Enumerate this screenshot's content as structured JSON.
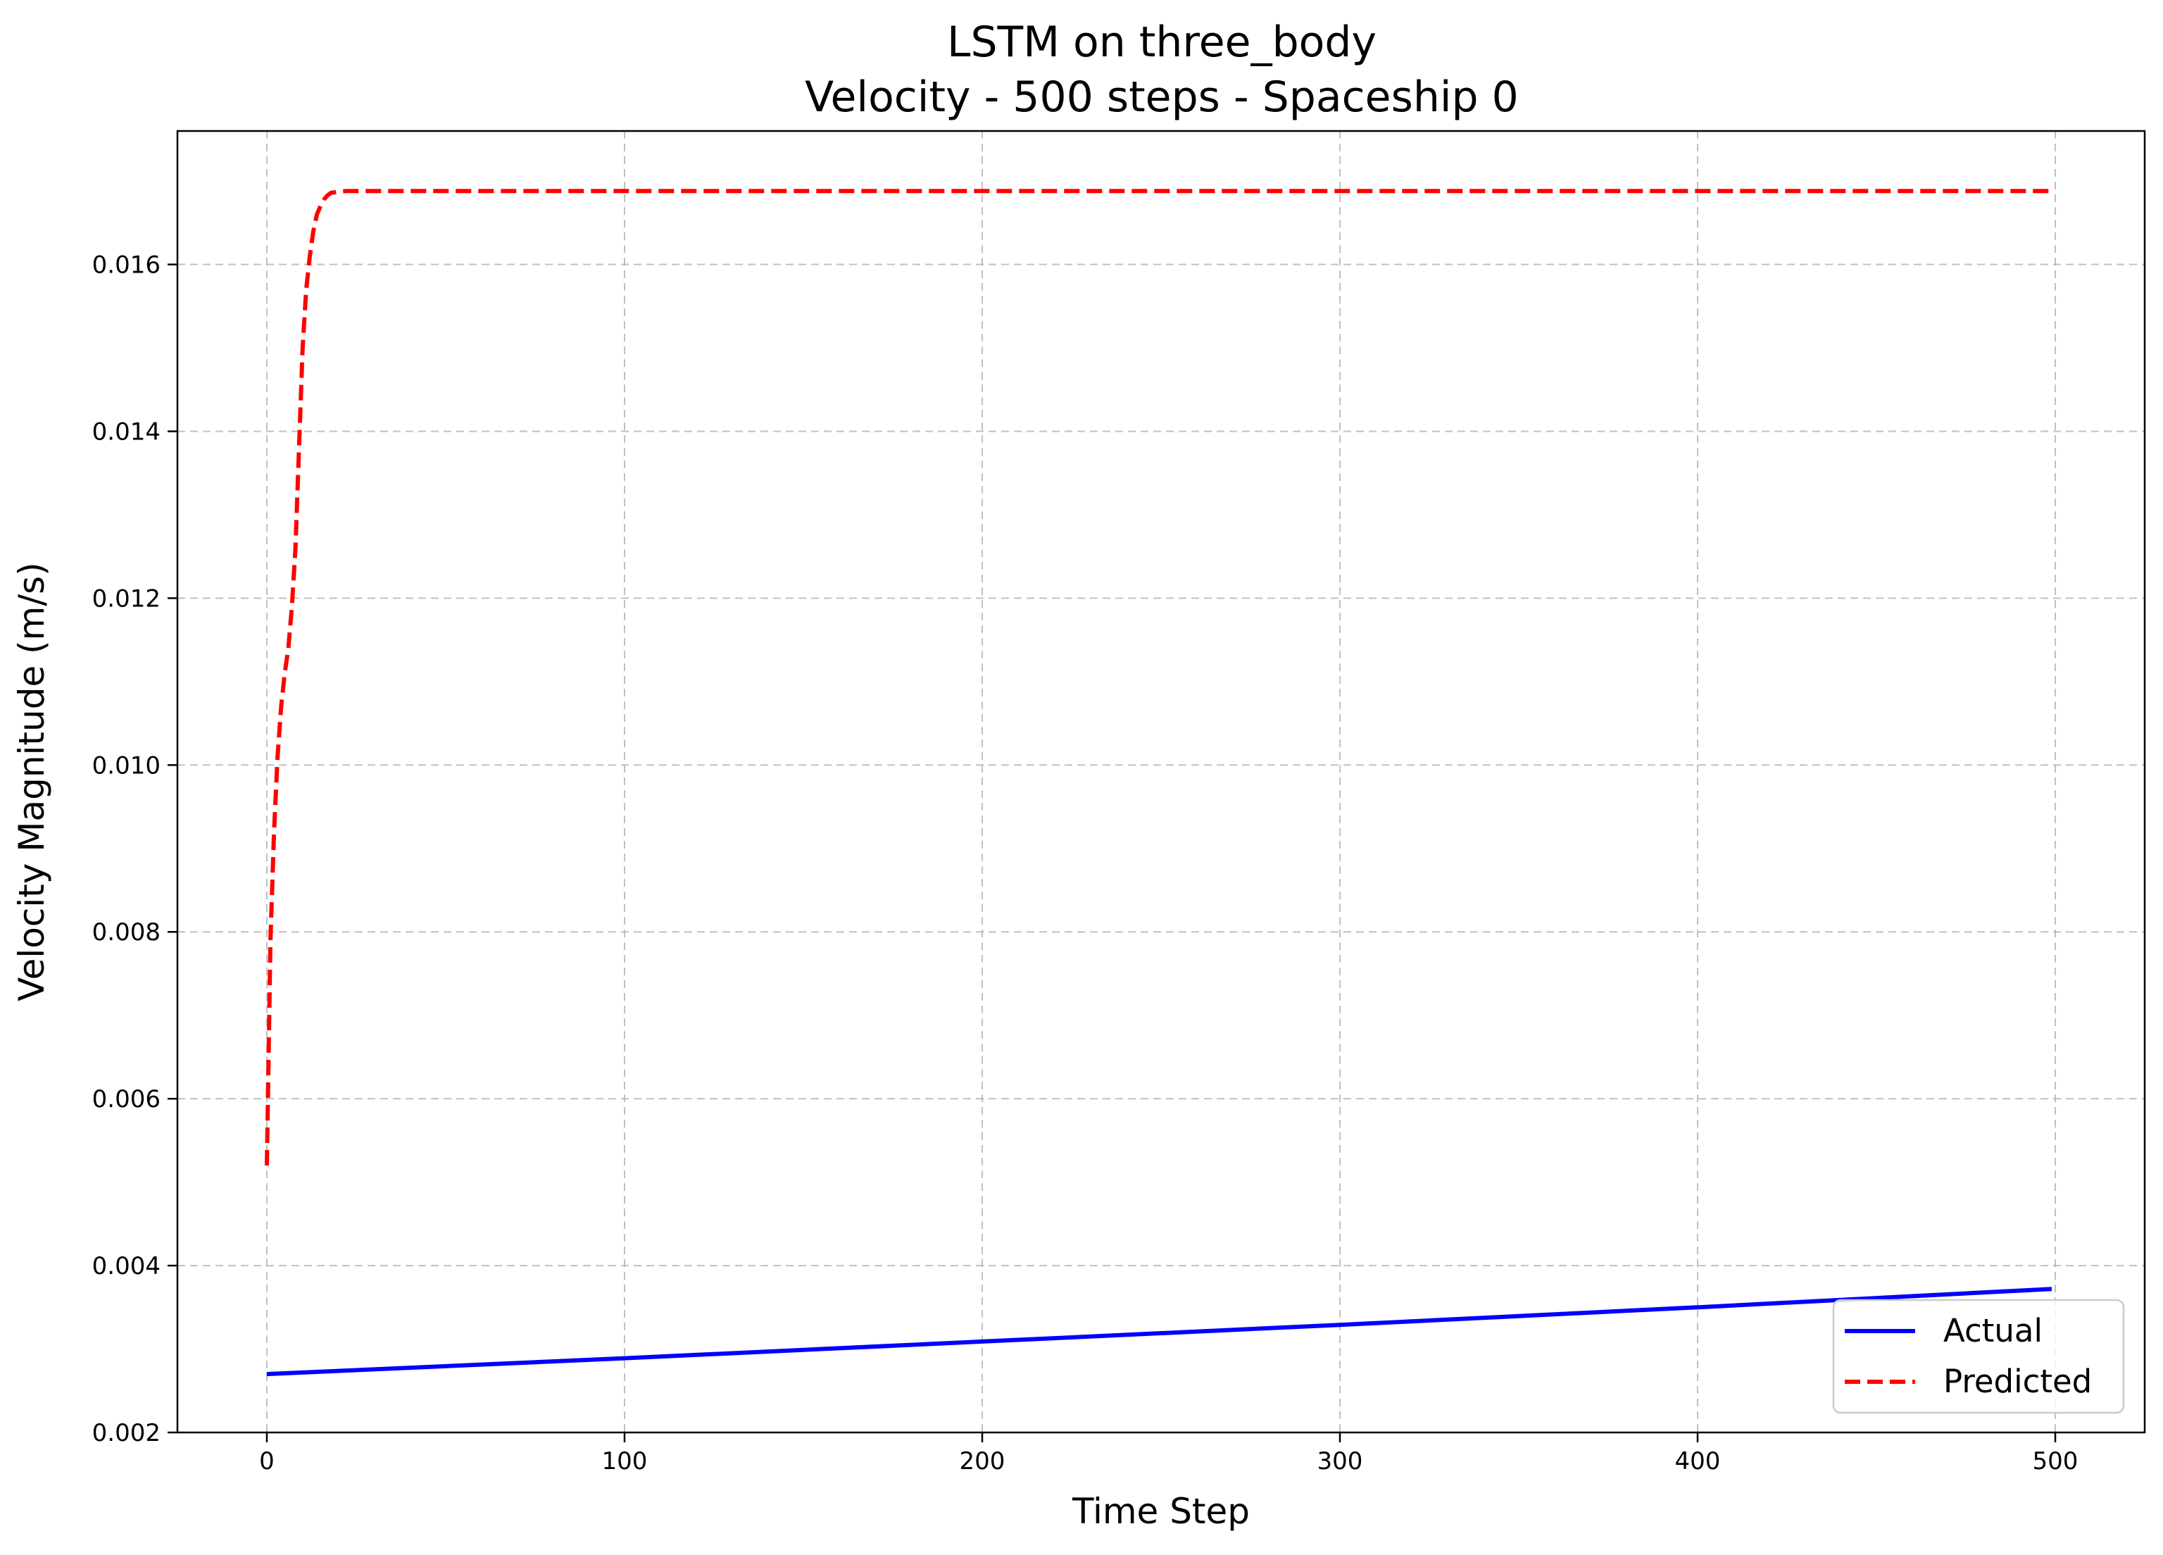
{
  "chart_data": {
    "type": "line",
    "title": "LSTM on three_body",
    "subtitle": "Velocity - 500 steps - Spaceship 0",
    "xlabel": "Time Step",
    "ylabel": "Velocity Magnitude (m/s)",
    "xlim": [
      -25,
      525
    ],
    "ylim": [
      0.002,
      0.0176
    ],
    "xticks": [
      0,
      100,
      200,
      300,
      400,
      500
    ],
    "xtick_labels": [
      "0",
      "100",
      "200",
      "300",
      "400",
      "500"
    ],
    "yticks": [
      0.002,
      0.004,
      0.006,
      0.008,
      0.01,
      0.012,
      0.014,
      0.016
    ],
    "ytick_labels": [
      "0.002",
      "0.004",
      "0.006",
      "0.008",
      "0.010",
      "0.012",
      "0.014",
      "0.016"
    ],
    "grid": true,
    "legend_position": "lower-right",
    "series": [
      {
        "name": "Actual",
        "color": "#0000ff",
        "style": "solid",
        "x": [
          0,
          100,
          200,
          300,
          400,
          499
        ],
        "y": [
          0.0027,
          0.00289,
          0.00309,
          0.00329,
          0.0035,
          0.00372
        ]
      },
      {
        "name": "Predicted",
        "color": "#ff0000",
        "style": "dashed",
        "x": [
          0,
          1,
          2,
          3,
          4,
          5,
          6,
          7,
          8,
          9,
          10,
          11,
          12,
          13,
          14,
          15,
          16,
          17,
          18,
          20,
          22,
          25,
          30,
          40,
          100,
          200,
          300,
          400,
          499
        ],
        "y": [
          0.0052,
          0.0079,
          0.0092,
          0.0101,
          0.0107,
          0.0111,
          0.0114,
          0.0119,
          0.0126,
          0.0138,
          0.015,
          0.0157,
          0.0161,
          0.0164,
          0.0166,
          0.0167,
          0.01678,
          0.01683,
          0.01686,
          0.01687,
          0.01688,
          0.01688,
          0.01688,
          0.01688,
          0.01688,
          0.01688,
          0.01688,
          0.01688,
          0.01688
        ]
      }
    ]
  }
}
